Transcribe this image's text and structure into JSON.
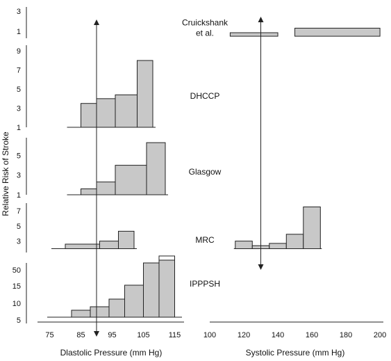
{
  "chart_data": {
    "type": "bar",
    "ylabel": "Relative Risk of Stroke",
    "diastolic_axis": {
      "label": "Dlastolic Pressure (mm Hg)",
      "ticks": [
        75,
        85,
        95,
        105,
        115
      ],
      "range": [
        72,
        118
      ]
    },
    "systolic_axis": {
      "label": "Systolic Pressure (mm Hg)",
      "ticks": [
        100,
        120,
        140,
        160,
        180,
        200
      ],
      "range": [
        100,
        202
      ]
    },
    "marker_lines": {
      "diastolic": 90,
      "systolic": 130
    },
    "colors": {
      "bar_fill": "#c8c8c8",
      "bar_stroke": "#222222",
      "axis": "#222222"
    },
    "panels": [
      {
        "study": "Cruickshank\net al.",
        "y_ticks": [
          1,
          3
        ],
        "y_range": [
          0.3,
          3.4
        ],
        "baseline": 0.5,
        "systolic_bars": [
          {
            "x0": 112,
            "x1": 140,
            "value": 0.85
          },
          {
            "x0": 150,
            "x1": 200,
            "value": 1.3
          }
        ]
      },
      {
        "study": "DHCCP",
        "y_ticks": [
          1,
          3,
          5,
          7,
          9
        ],
        "y_range": [
          1,
          9.6
        ],
        "baseline": 1,
        "diastolic_bars": [
          {
            "x0": 85,
            "x1": 90,
            "value": 3.5
          },
          {
            "x0": 90,
            "x1": 96,
            "value": 4.0
          },
          {
            "x0": 96,
            "x1": 103,
            "value": 4.4
          },
          {
            "x0": 103,
            "x1": 108,
            "value": 8.0
          }
        ]
      },
      {
        "study": "Glasgow",
        "y_ticks": [
          1,
          3,
          5
        ],
        "y_range": [
          1,
          6.8
        ],
        "baseline": 1,
        "diastolic_bars": [
          {
            "x0": 85,
            "x1": 90,
            "value": 1.6
          },
          {
            "x0": 90,
            "x1": 96,
            "value": 2.3
          },
          {
            "x0": 96,
            "x1": 106,
            "value": 4.0
          },
          {
            "x0": 106,
            "x1": 112,
            "value": 6.3
          }
        ]
      },
      {
        "study": "MRC",
        "y_ticks": [
          3,
          5,
          7
        ],
        "y_range": [
          1.5,
          8
        ],
        "baseline": 2.0,
        "diastolic_bars": [
          {
            "x0": 80,
            "x1": 91,
            "value": 2.6
          },
          {
            "x0": 91,
            "x1": 97,
            "value": 3.0
          },
          {
            "x0": 97,
            "x1": 102,
            "value": 4.3
          }
        ],
        "systolic_bars": [
          {
            "x0": 115,
            "x1": 125,
            "value": 3.0
          },
          {
            "x0": 125,
            "x1": 135,
            "value": 2.4
          },
          {
            "x0": 135,
            "x1": 145,
            "value": 2.7
          },
          {
            "x0": 145,
            "x1": 155,
            "value": 3.9
          },
          {
            "x0": 155,
            "x1": 165,
            "value": 7.5
          }
        ]
      },
      {
        "study": "IPPPSH",
        "y_ticks": [
          5,
          10,
          15,
          50
        ],
        "diastolic_bars": [
          {
            "x0": 82,
            "x1": 88,
            "value": 7
          },
          {
            "x0": 88,
            "x1": 94,
            "value": 8
          },
          {
            "x0": 94,
            "x1": 99,
            "value": 10
          },
          {
            "x0": 99,
            "x1": 105,
            "value": 15
          },
          {
            "x0": 105,
            "x1": 110,
            "value": 50
          },
          {
            "x0": 110,
            "x1": 115,
            "value": 60
          }
        ]
      }
    ]
  }
}
